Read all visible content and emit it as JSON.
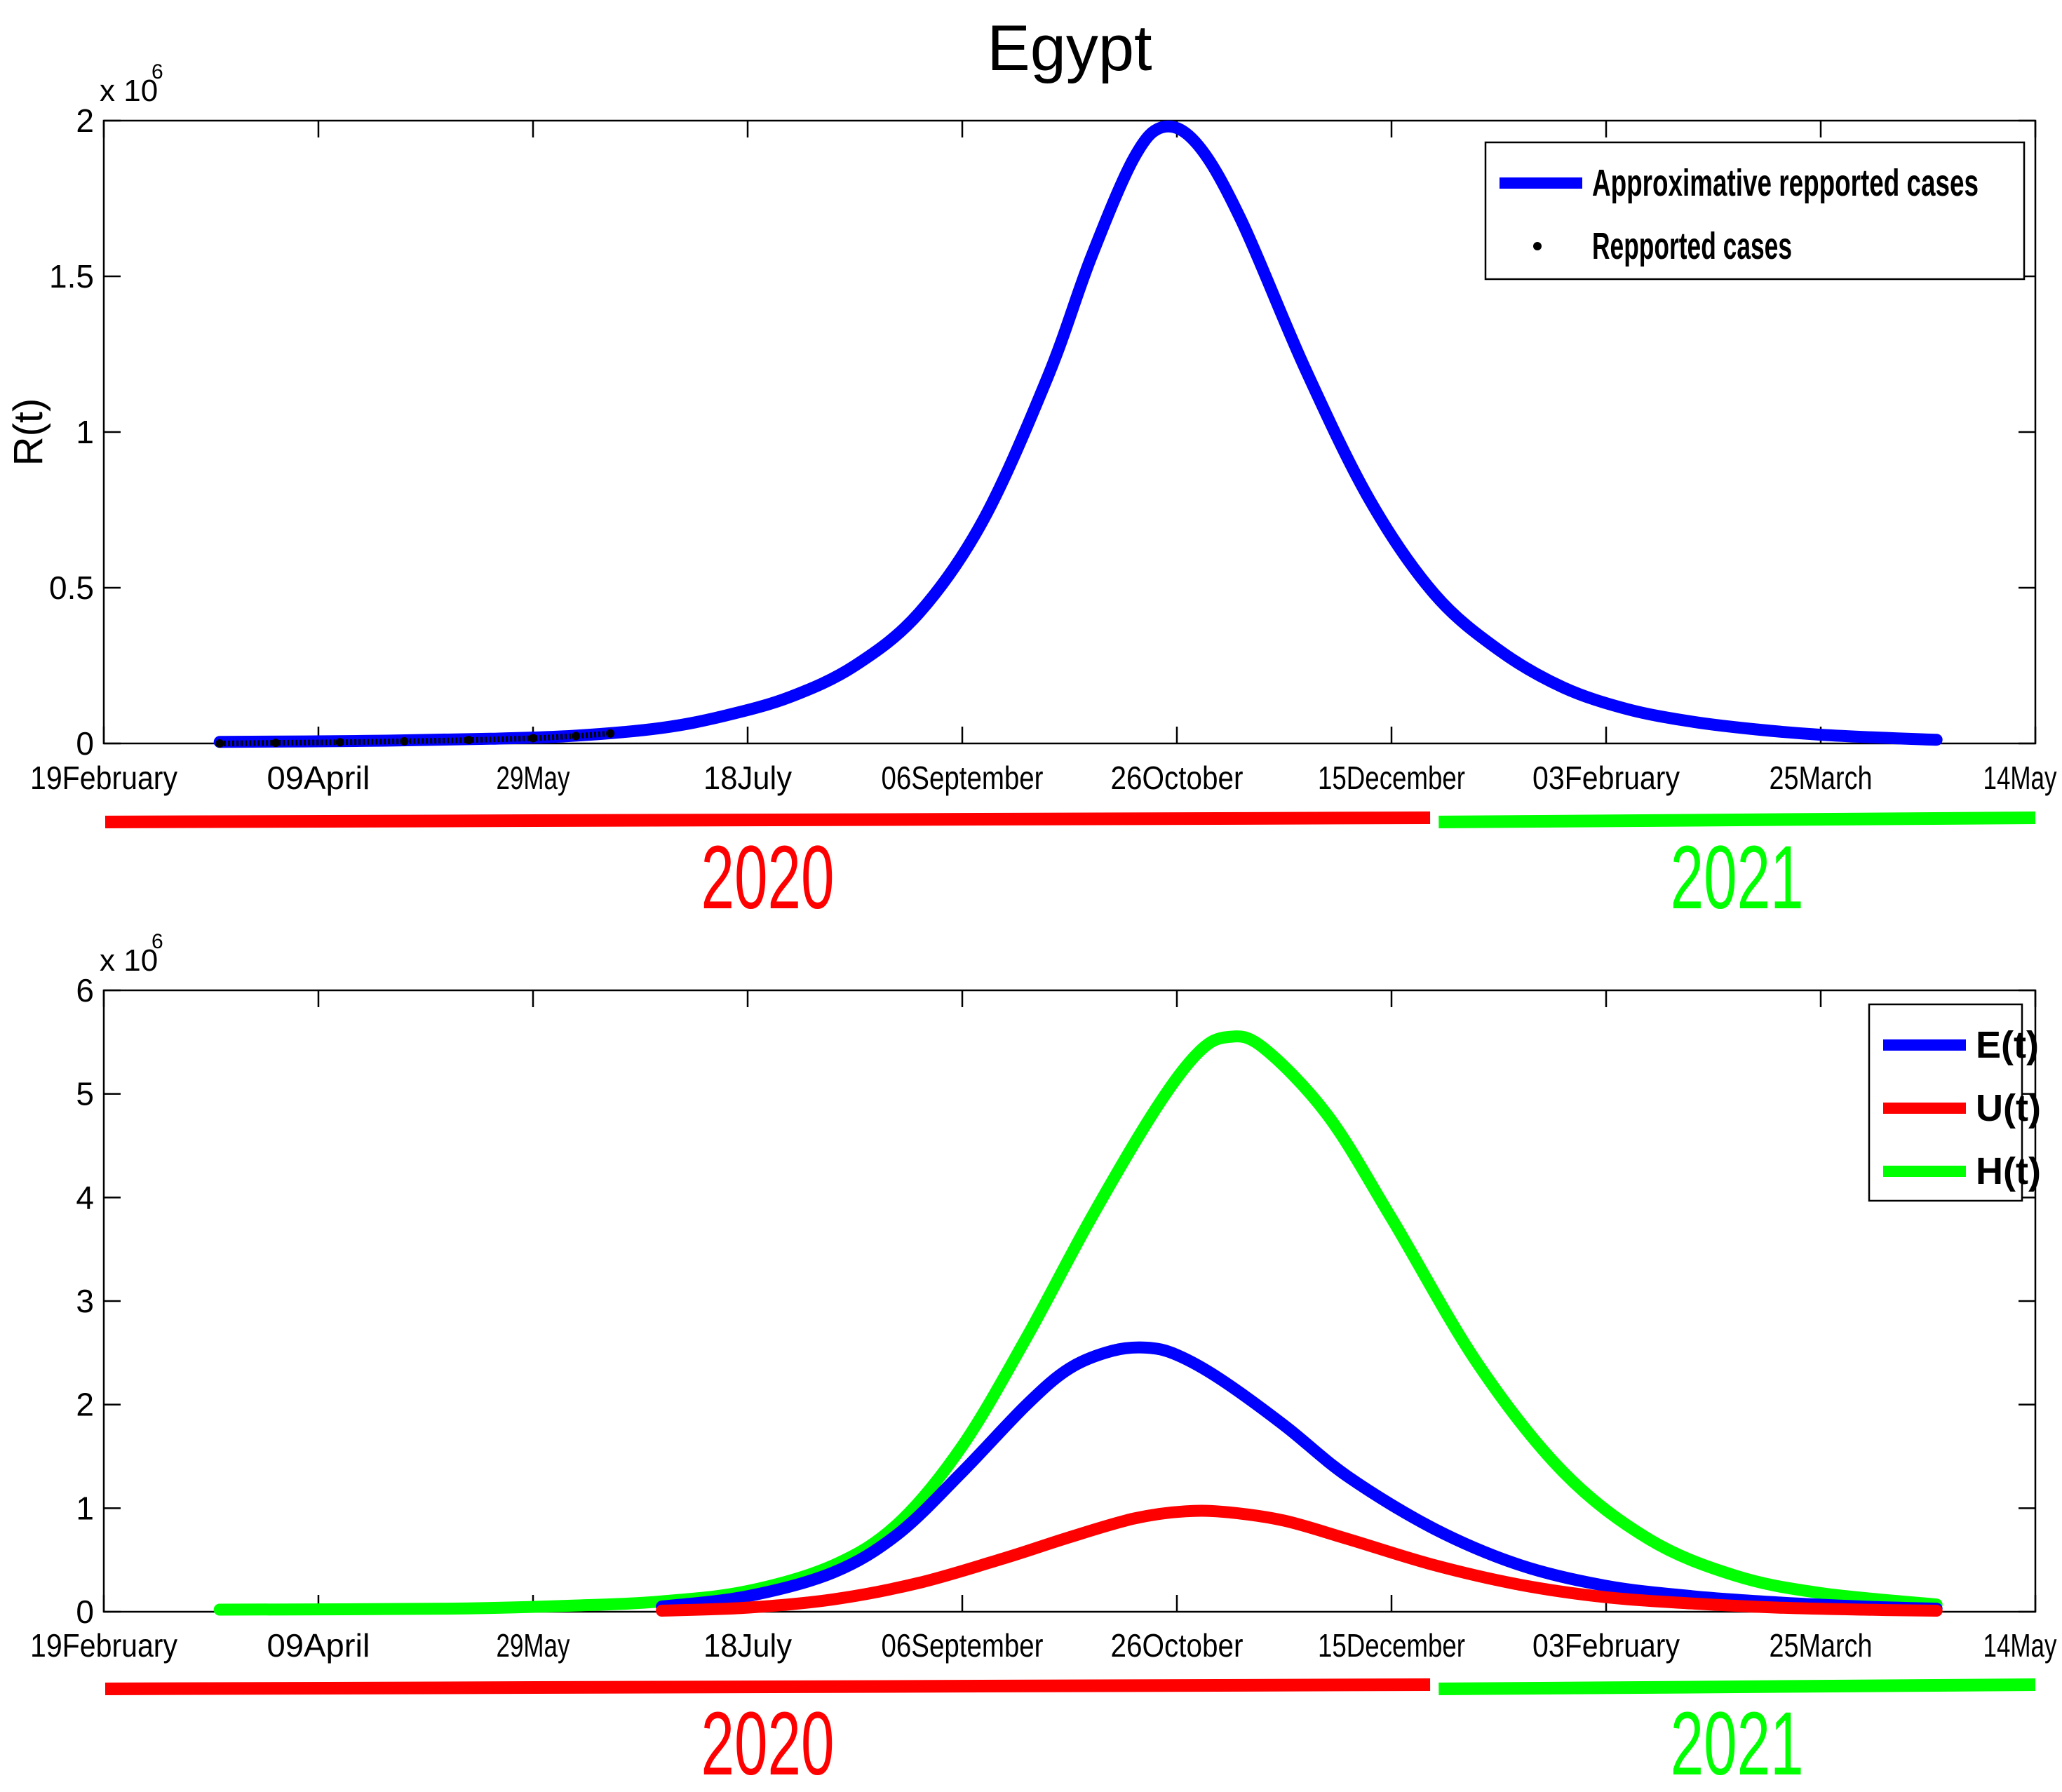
{
  "title": "Egypt",
  "colors": {
    "blue": "#0000ff",
    "red": "#ff0000",
    "green": "#00ff00",
    "black": "#000000"
  },
  "chart_data": [
    {
      "type": "line",
      "id": "top",
      "title": "Egypt",
      "xlabel": "",
      "ylabel": "R(t)",
      "y_multiplier": "x 10",
      "y_exponent": "6",
      "xlim": [
        0,
        450
      ],
      "ylim": [
        0,
        2
      ],
      "x_ticks": [
        {
          "x": 0,
          "label": "19February"
        },
        {
          "x": 50,
          "label": "09April"
        },
        {
          "x": 100,
          "label": "29May"
        },
        {
          "x": 150,
          "label": "18July"
        },
        {
          "x": 200,
          "label": "06September"
        },
        {
          "x": 250,
          "label": "26October"
        },
        {
          "x": 300,
          "label": "15December"
        },
        {
          "x": 350,
          "label": "03February"
        },
        {
          "x": 400,
          "label": "25March"
        },
        {
          "x": 450,
          "label": "14May"
        }
      ],
      "y_ticks": [
        {
          "y": 0,
          "label": "0"
        },
        {
          "y": 0.5,
          "label": "0.5"
        },
        {
          "y": 1,
          "label": "1"
        },
        {
          "y": 1.5,
          "label": "1.5"
        },
        {
          "y": 2,
          "label": "2"
        }
      ],
      "legend": {
        "position": "top-right",
        "entries": [
          "Approximative repported cases",
          "Repported cases"
        ]
      },
      "series": [
        {
          "name": "Approximative repported cases",
          "color": "blue",
          "style": "line",
          "x": [
            27,
            60,
            90,
            110,
            130,
            145,
            160,
            175,
            190,
            205,
            220,
            230,
            240,
            247,
            255,
            265,
            280,
            295,
            310,
            325,
            340,
            355,
            370,
            385,
            400,
            420,
            427
          ],
          "y": [
            0.005,
            0.008,
            0.015,
            0.025,
            0.05,
            0.09,
            0.15,
            0.25,
            0.42,
            0.72,
            1.18,
            1.56,
            1.88,
            1.98,
            1.92,
            1.68,
            1.2,
            0.78,
            0.48,
            0.3,
            0.18,
            0.11,
            0.07,
            0.045,
            0.028,
            0.015,
            0.012
          ]
        },
        {
          "name": "Repported cases",
          "color": "black",
          "style": "dots",
          "x": [
            27,
            40,
            55,
            70,
            85,
            100,
            110,
            118
          ],
          "y": [
            0.0,
            0.002,
            0.004,
            0.007,
            0.011,
            0.017,
            0.024,
            0.032
          ]
        }
      ],
      "year_bands": [
        {
          "label": "2020",
          "color": "red",
          "from": 0,
          "to": 309
        },
        {
          "label": "2021",
          "color": "green",
          "from": 311,
          "to": 450
        }
      ]
    },
    {
      "type": "line",
      "id": "bottom",
      "title": "",
      "xlabel": "",
      "ylabel": "",
      "y_multiplier": "x 10",
      "y_exponent": "6",
      "xlim": [
        0,
        450
      ],
      "ylim": [
        0,
        6
      ],
      "x_ticks": [
        {
          "x": 0,
          "label": "19February"
        },
        {
          "x": 50,
          "label": "09April"
        },
        {
          "x": 100,
          "label": "29May"
        },
        {
          "x": 150,
          "label": "18July"
        },
        {
          "x": 200,
          "label": "06September"
        },
        {
          "x": 250,
          "label": "26October"
        },
        {
          "x": 300,
          "label": "15December"
        },
        {
          "x": 350,
          "label": "03February"
        },
        {
          "x": 400,
          "label": "25March"
        },
        {
          "x": 450,
          "label": "14May"
        }
      ],
      "y_ticks": [
        {
          "y": 0,
          "label": "0"
        },
        {
          "y": 1,
          "label": "1"
        },
        {
          "y": 2,
          "label": "2"
        },
        {
          "y": 3,
          "label": "3"
        },
        {
          "y": 4,
          "label": "4"
        },
        {
          "y": 5,
          "label": "5"
        },
        {
          "y": 6,
          "label": "6"
        }
      ],
      "legend": {
        "position": "top-right",
        "entries": [
          "E(t)",
          "U(t)",
          "H(t)"
        ]
      },
      "series": [
        {
          "name": "H(t)",
          "color": "green",
          "x": [
            27,
            80,
            110,
            130,
            150,
            170,
            185,
            200,
            215,
            230,
            245,
            255,
            262,
            270,
            285,
            300,
            320,
            340,
            360,
            380,
            400,
            427
          ],
          "y": [
            0.02,
            0.03,
            0.06,
            0.1,
            0.2,
            0.45,
            0.85,
            1.6,
            2.65,
            3.8,
            4.85,
            5.4,
            5.55,
            5.45,
            4.8,
            3.8,
            2.4,
            1.35,
            0.7,
            0.35,
            0.18,
            0.07
          ]
        },
        {
          "name": "E(t)",
          "color": "blue",
          "x": [
            130,
            150,
            170,
            185,
            200,
            215,
            225,
            235,
            243,
            250,
            260,
            275,
            290,
            310,
            330,
            350,
            370,
            390,
            410,
            427
          ],
          "y": [
            0.05,
            0.15,
            0.38,
            0.75,
            1.35,
            2.0,
            2.35,
            2.52,
            2.55,
            2.48,
            2.25,
            1.8,
            1.3,
            0.8,
            0.45,
            0.25,
            0.15,
            0.09,
            0.05,
            0.03
          ]
        },
        {
          "name": "U(t)",
          "color": "red",
          "x": [
            130,
            150,
            170,
            190,
            210,
            225,
            240,
            252,
            262,
            275,
            290,
            310,
            330,
            350,
            370,
            390,
            410,
            427
          ],
          "y": [
            0.01,
            0.04,
            0.12,
            0.28,
            0.52,
            0.72,
            0.9,
            0.97,
            0.96,
            0.88,
            0.7,
            0.45,
            0.26,
            0.14,
            0.08,
            0.04,
            0.02,
            0.01
          ]
        }
      ],
      "year_bands": [
        {
          "label": "2020",
          "color": "red",
          "from": 0,
          "to": 309
        },
        {
          "label": "2021",
          "color": "green",
          "from": 311,
          "to": 450
        }
      ]
    }
  ]
}
